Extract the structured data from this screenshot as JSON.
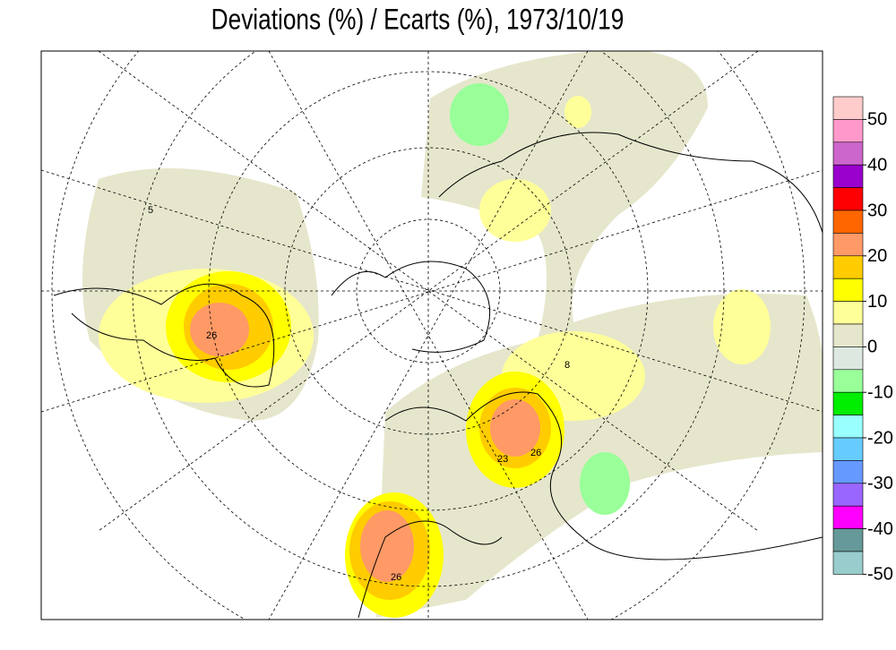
{
  "title": "Deviations (%) / Ecarts (%), 1973/10/19",
  "colorbar": {
    "colors": [
      "#ffcccc",
      "#ff99cc",
      "#cc66cc",
      "#9900cc",
      "#ff0000",
      "#ff6600",
      "#ff9966",
      "#ffcc00",
      "#ffff00",
      "#ffff99",
      "#e6e6cc",
      "#dde8e0",
      "#99ff99",
      "#00ee00",
      "#99ffff",
      "#66ccff",
      "#6699ff",
      "#9966ff",
      "#ff00ff",
      "#669999",
      "#99cccc"
    ],
    "ticks": [
      50,
      40,
      30,
      20,
      10,
      0,
      -10,
      -20,
      -30,
      -40,
      -50
    ]
  },
  "contour_labels": [
    "5",
    "26",
    "23",
    "26",
    "8",
    "26"
  ]
}
